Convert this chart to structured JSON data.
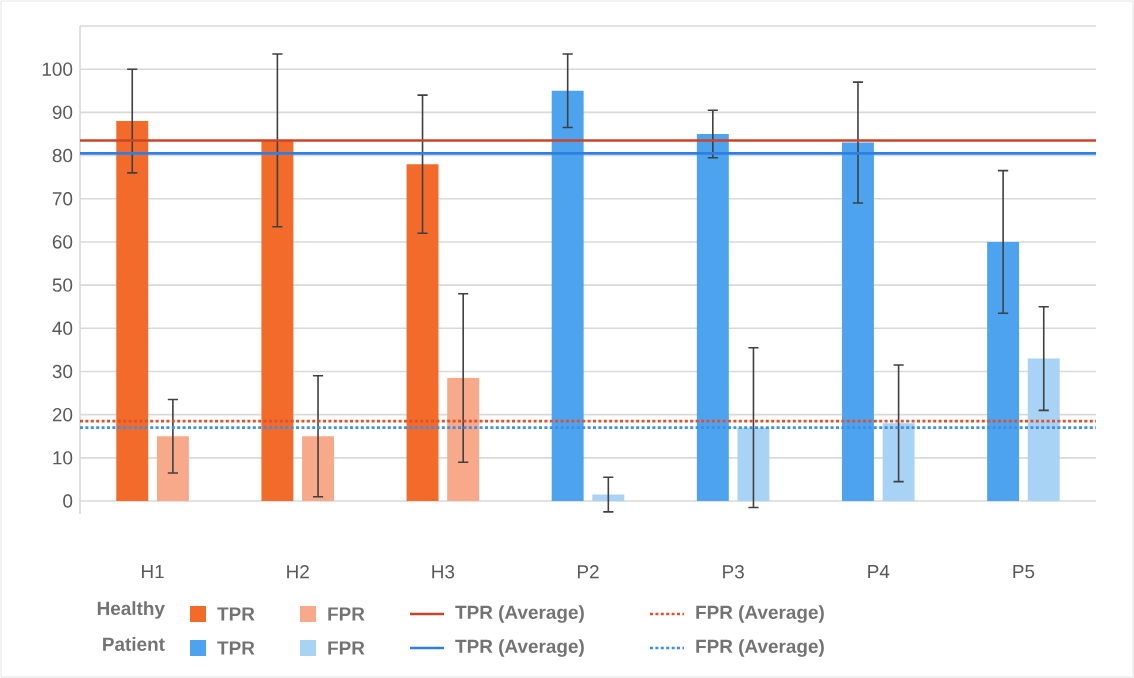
{
  "chart_data": {
    "type": "bar",
    "categories": [
      "H1",
      "H2",
      "H3",
      "P2",
      "P3",
      "P4",
      "P5"
    ],
    "series": [
      {
        "name": "TPR",
        "color": "#f26b2a",
        "values": [
          88,
          83.5,
          78,
          null,
          null,
          null,
          null
        ],
        "errors": [
          12,
          20,
          16,
          null,
          null,
          null,
          null
        ]
      },
      {
        "name": "FPR",
        "color": "#f7a98a",
        "values": [
          15,
          15,
          28.5,
          null,
          null,
          null,
          null
        ],
        "errors": [
          8.5,
          14,
          19.5,
          null,
          null,
          null,
          null
        ]
      },
      {
        "name": "TPR",
        "color": "#4da3ee",
        "values": [
          null,
          null,
          null,
          95,
          85,
          83,
          60
        ],
        "errors": [
          null,
          null,
          null,
          8.5,
          5.5,
          14,
          16.5
        ]
      },
      {
        "name": "FPR",
        "color": "#a9d3f5",
        "values": [
          null,
          null,
          null,
          1.5,
          17,
          18,
          33
        ],
        "errors": [
          null,
          null,
          null,
          4,
          18.5,
          13.5,
          12
        ]
      }
    ],
    "ref_lines": [
      {
        "axis": "y",
        "value": 83.5,
        "label": "TPR (Average)",
        "color": "#c8442a",
        "line_style": "solid"
      },
      {
        "axis": "y",
        "value": 18.5,
        "label": "FPR (Average)",
        "color": "#e0502a",
        "line_style": "dotted"
      },
      {
        "axis": "y",
        "value": 80.5,
        "label": "TPR (Average)",
        "color": "#2f7fe0",
        "line_style": "solid"
      },
      {
        "axis": "y",
        "value": 17,
        "label": "FPR (Average)",
        "color": "#3d8fe8",
        "line_style": "dotted"
      }
    ],
    "annotations": [
      "Healthy",
      "Patient"
    ],
    "ylim": [
      -3,
      110
    ],
    "yticks": [
      0,
      10,
      20,
      30,
      40,
      50,
      60,
      70,
      80,
      90,
      100,
      {
        "value": 110,
        "label": null
      }
    ],
    "grid": "y",
    "legend": "bottom"
  }
}
